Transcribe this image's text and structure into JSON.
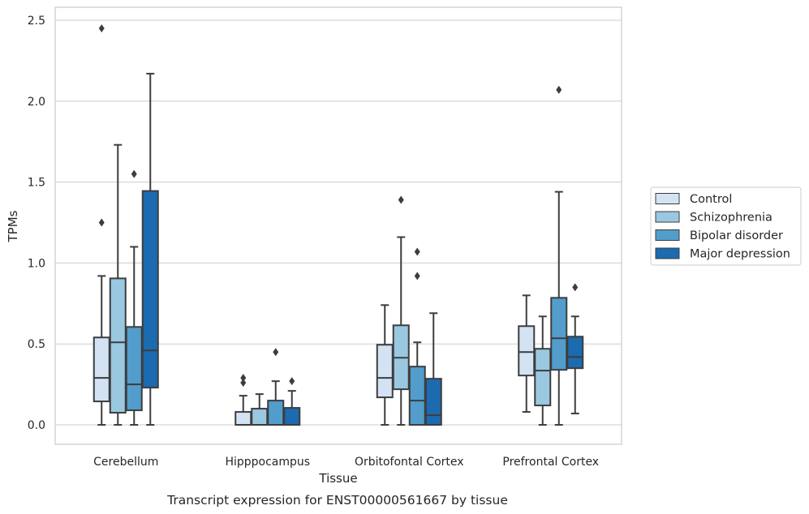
{
  "chart_data": {
    "type": "box",
    "title": "",
    "xlabel": "Tissue",
    "ylabel": "TPMs",
    "caption": "Transcript expression for ENST00000561667 by tissue",
    "ylim": [
      -0.12,
      2.58
    ],
    "yticks": [
      0.0,
      0.5,
      1.0,
      1.5,
      2.0,
      2.5
    ],
    "ytick_labels": [
      "0.0",
      "0.5",
      "1.0",
      "1.5",
      "2.0",
      "2.5"
    ],
    "grid": "horizontal",
    "legend_position": "right",
    "categories": [
      "Cerebellum",
      "Hipppocampus",
      "Orbitofontal Cortex",
      "Prefrontal Cortex"
    ],
    "series": [
      {
        "name": "Control",
        "color": "#d3e3f3",
        "boxes": [
          {
            "whisker_low": 0.0,
            "q1": 0.145,
            "median": 0.29,
            "q3": 0.54,
            "whisker_high": 0.92,
            "outliers": [
              1.25,
              2.45
            ]
          },
          {
            "whisker_low": 0.0,
            "q1": 0.0,
            "median": 0.0,
            "q3": 0.08,
            "whisker_high": 0.18,
            "outliers": [
              0.26,
              0.29
            ]
          },
          {
            "whisker_low": 0.0,
            "q1": 0.17,
            "median": 0.29,
            "q3": 0.495,
            "whisker_high": 0.74,
            "outliers": []
          },
          {
            "whisker_low": 0.08,
            "q1": 0.305,
            "median": 0.45,
            "q3": 0.61,
            "whisker_high": 0.8,
            "outliers": []
          }
        ]
      },
      {
        "name": "Schizophrenia",
        "color": "#9ac8e0",
        "boxes": [
          {
            "whisker_low": 0.0,
            "q1": 0.075,
            "median": 0.51,
            "q3": 0.905,
            "whisker_high": 1.73,
            "outliers": []
          },
          {
            "whisker_low": 0.0,
            "q1": 0.0,
            "median": 0.0,
            "q3": 0.1,
            "whisker_high": 0.19,
            "outliers": []
          },
          {
            "whisker_low": 0.0,
            "q1": 0.22,
            "median": 0.415,
            "q3": 0.615,
            "whisker_high": 1.16,
            "outliers": [
              1.39
            ]
          },
          {
            "whisker_low": 0.0,
            "q1": 0.12,
            "median": 0.335,
            "q3": 0.47,
            "whisker_high": 0.67,
            "outliers": []
          }
        ]
      },
      {
        "name": "Bipolar disorder",
        "color": "#529dcc",
        "boxes": [
          {
            "whisker_low": 0.0,
            "q1": 0.09,
            "median": 0.25,
            "q3": 0.605,
            "whisker_high": 1.1,
            "outliers": [
              1.55
            ]
          },
          {
            "whisker_low": 0.0,
            "q1": 0.0,
            "median": 0.0,
            "q3": 0.15,
            "whisker_high": 0.27,
            "outliers": [
              0.45
            ]
          },
          {
            "whisker_low": 0.0,
            "q1": 0.0,
            "median": 0.15,
            "q3": 0.36,
            "whisker_high": 0.51,
            "outliers": [
              0.92,
              1.07
            ]
          },
          {
            "whisker_low": 0.0,
            "q1": 0.34,
            "median": 0.535,
            "q3": 0.785,
            "whisker_high": 1.44,
            "outliers": [
              2.07
            ]
          }
        ]
      },
      {
        "name": "Major depression",
        "color": "#1c6aaf",
        "boxes": [
          {
            "whisker_low": 0.0,
            "q1": 0.23,
            "median": 0.46,
            "q3": 1.445,
            "whisker_high": 2.17,
            "outliers": []
          },
          {
            "whisker_low": 0.0,
            "q1": 0.0,
            "median": 0.0,
            "q3": 0.105,
            "whisker_high": 0.21,
            "outliers": [
              0.27
            ]
          },
          {
            "whisker_low": 0.0,
            "q1": 0.0,
            "median": 0.06,
            "q3": 0.285,
            "whisker_high": 0.69,
            "outliers": []
          },
          {
            "whisker_low": 0.07,
            "q1": 0.35,
            "median": 0.42,
            "q3": 0.545,
            "whisker_high": 0.67,
            "outliers": [
              0.85
            ]
          }
        ]
      }
    ]
  }
}
